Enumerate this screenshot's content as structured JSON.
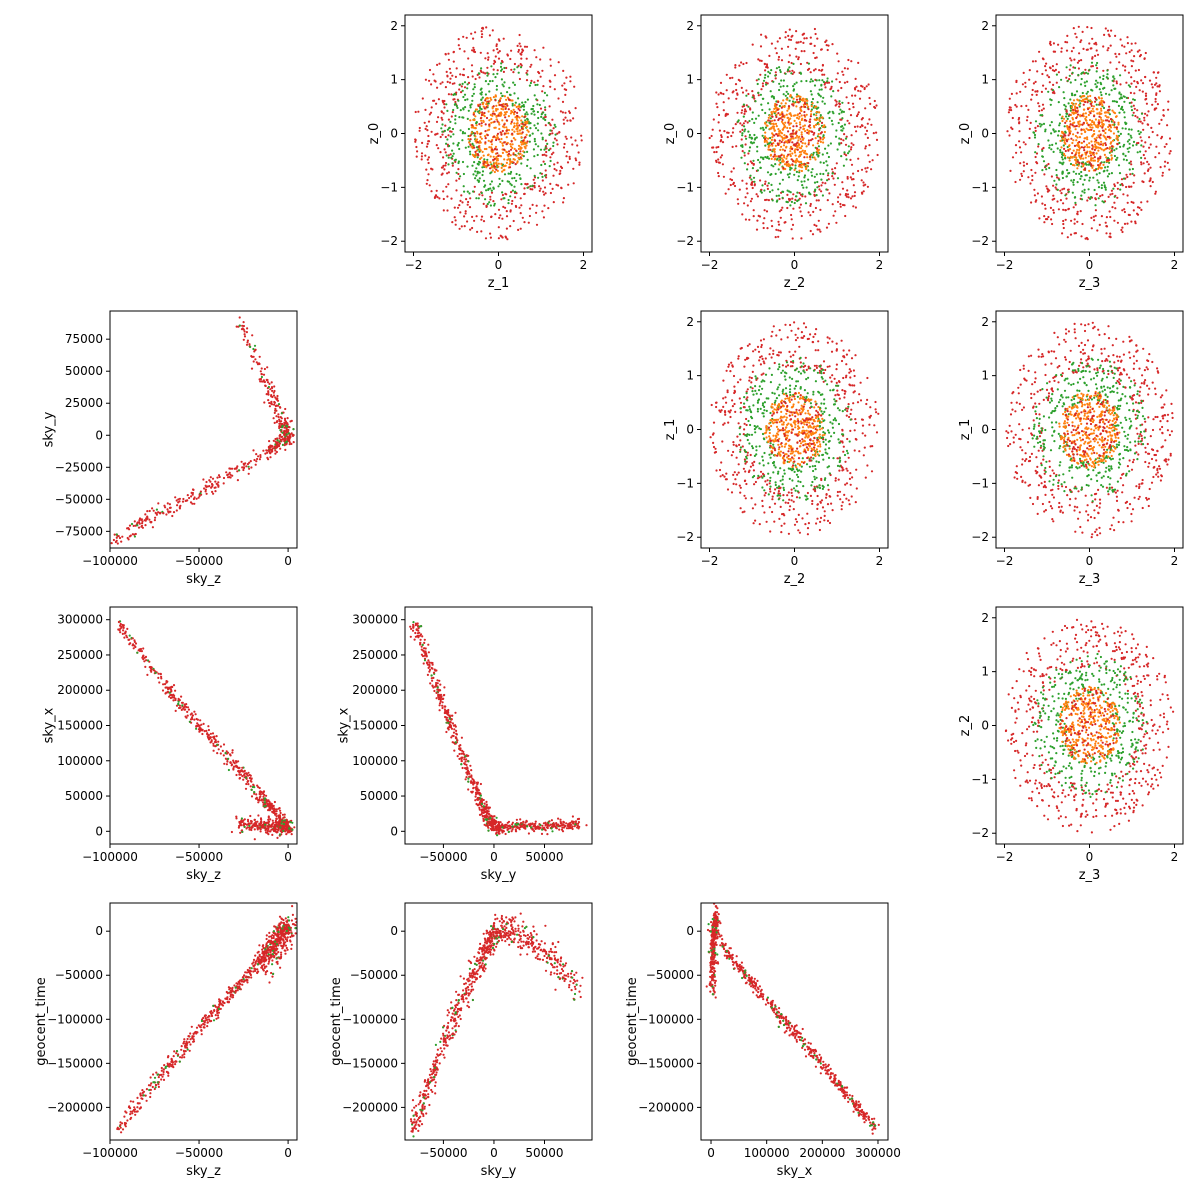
{
  "colors": {
    "red": "#d62728",
    "green": "#2ca02c",
    "orange": "#ff7f0e"
  },
  "chart_data": [
    {
      "type": "scatter",
      "xlabel": "z_1",
      "ylabel": "z_0",
      "xlim": [
        -2.2,
        2.2
      ],
      "ylim": [
        -2.2,
        2.2
      ],
      "xticks": [
        {
          "v": -2,
          "label": "−2"
        },
        {
          "v": 0,
          "label": "0"
        },
        {
          "v": 2,
          "label": "2"
        }
      ],
      "yticks": [
        {
          "v": -2,
          "label": "−2"
        },
        {
          "v": -1,
          "label": "−1"
        },
        {
          "v": 0,
          "label": "0"
        },
        {
          "v": 1,
          "label": "1"
        },
        {
          "v": 2,
          "label": "2"
        }
      ],
      "pattern": "disc",
      "seed": 11
    },
    {
      "type": "scatter",
      "xlabel": "z_2",
      "ylabel": "z_0",
      "xlim": [
        -2.2,
        2.2
      ],
      "ylim": [
        -2.2,
        2.2
      ],
      "xticks": [
        {
          "v": -2,
          "label": "−2"
        },
        {
          "v": 0,
          "label": "0"
        },
        {
          "v": 2,
          "label": "2"
        }
      ],
      "yticks": [
        {
          "v": -2,
          "label": "−2"
        },
        {
          "v": -1,
          "label": "−1"
        },
        {
          "v": 0,
          "label": "0"
        },
        {
          "v": 1,
          "label": "1"
        },
        {
          "v": 2,
          "label": "2"
        }
      ],
      "pattern": "disc",
      "seed": 23
    },
    {
      "type": "scatter",
      "xlabel": "z_3",
      "ylabel": "z_0",
      "xlim": [
        -2.2,
        2.2
      ],
      "ylim": [
        -2.2,
        2.2
      ],
      "xticks": [
        {
          "v": -2,
          "label": "−2"
        },
        {
          "v": 0,
          "label": "0"
        },
        {
          "v": 2,
          "label": "2"
        }
      ],
      "yticks": [
        {
          "v": -2,
          "label": "−2"
        },
        {
          "v": -1,
          "label": "−1"
        },
        {
          "v": 0,
          "label": "0"
        },
        {
          "v": 1,
          "label": "1"
        },
        {
          "v": 2,
          "label": "2"
        }
      ],
      "pattern": "disc",
      "seed": 37
    },
    {
      "type": "scatter",
      "xlabel": "sky_z",
      "ylabel": "sky_y",
      "xlim": [
        -100000,
        5000
      ],
      "ylim": [
        -88000,
        97000
      ],
      "xticks": [
        {
          "v": -100000,
          "label": "−100000"
        },
        {
          "v": -50000,
          "label": "−50000"
        },
        {
          "v": 0,
          "label": "0"
        }
      ],
      "yticks": [
        {
          "v": -75000,
          "label": "−75000"
        },
        {
          "v": -50000,
          "label": "−50000"
        },
        {
          "v": -25000,
          "label": "−25000"
        },
        {
          "v": 0,
          "label": "0"
        },
        {
          "v": 25000,
          "label": "25000"
        },
        {
          "v": 50000,
          "label": "50000"
        },
        {
          "v": 75000,
          "label": "75000"
        }
      ],
      "curves": [
        {
          "points": [
            [
              -28000,
              90000
            ],
            [
              -15000,
              50000
            ],
            [
              -8000,
              25000
            ],
            [
              -3000,
              8000
            ],
            [
              0,
              2000
            ],
            [
              -2000,
              -5000
            ],
            [
              -10000,
              -12000
            ],
            [
              -30000,
              -28000
            ],
            [
              -55000,
              -48000
            ],
            [
              -75000,
              -63000
            ],
            [
              -97000,
              -82000
            ]
          ],
          "spread": [
            1800,
            2800
          ]
        }
      ],
      "seed": 41
    },
    {
      "type": "scatter",
      "xlabel": "z_2",
      "ylabel": "z_1",
      "xlim": [
        -2.2,
        2.2
      ],
      "ylim": [
        -2.2,
        2.2
      ],
      "xticks": [
        {
          "v": -2,
          "label": "−2"
        },
        {
          "v": 0,
          "label": "0"
        },
        {
          "v": 2,
          "label": "2"
        }
      ],
      "yticks": [
        {
          "v": -2,
          "label": "−2"
        },
        {
          "v": -1,
          "label": "−1"
        },
        {
          "v": 0,
          "label": "0"
        },
        {
          "v": 1,
          "label": "1"
        },
        {
          "v": 2,
          "label": "2"
        }
      ],
      "pattern": "disc",
      "seed": 53
    },
    {
      "type": "scatter",
      "xlabel": "z_3",
      "ylabel": "z_1",
      "xlim": [
        -2.2,
        2.2
      ],
      "ylim": [
        -2.2,
        2.2
      ],
      "xticks": [
        {
          "v": -2,
          "label": "−2"
        },
        {
          "v": 0,
          "label": "0"
        },
        {
          "v": 2,
          "label": "2"
        }
      ],
      "yticks": [
        {
          "v": -2,
          "label": "−2"
        },
        {
          "v": -1,
          "label": "−1"
        },
        {
          "v": 0,
          "label": "0"
        },
        {
          "v": 1,
          "label": "1"
        },
        {
          "v": 2,
          "label": "2"
        }
      ],
      "pattern": "disc",
      "seed": 67
    },
    {
      "type": "scatter",
      "xlabel": "sky_z",
      "ylabel": "sky_x",
      "xlim": [
        -100000,
        5000
      ],
      "ylim": [
        -18000,
        318000
      ],
      "xticks": [
        {
          "v": -100000,
          "label": "−100000"
        },
        {
          "v": -50000,
          "label": "−50000"
        },
        {
          "v": 0,
          "label": "0"
        }
      ],
      "yticks": [
        {
          "v": 0,
          "label": "0"
        },
        {
          "v": 50000,
          "label": "50000"
        },
        {
          "v": 100000,
          "label": "100000"
        },
        {
          "v": 150000,
          "label": "150000"
        },
        {
          "v": 200000,
          "label": "200000"
        },
        {
          "v": 250000,
          "label": "250000"
        },
        {
          "v": 300000,
          "label": "300000"
        }
      ],
      "curves": [
        {
          "points": [
            [
              -96000,
              297000
            ],
            [
              -70000,
              210000
            ],
            [
              -50000,
              150000
            ],
            [
              -30000,
              95000
            ],
            [
              -15000,
              50000
            ],
            [
              -5000,
              20000
            ],
            [
              0,
              5000
            ]
          ],
          "spread": [
            1500,
            4000
          ]
        },
        {
          "points": [
            [
              -28000,
              10000
            ],
            [
              -15000,
              8000
            ],
            [
              -5000,
              6000
            ],
            [
              0,
              3000
            ]
          ],
          "spread": [
            2000,
            5000
          ]
        }
      ],
      "seed": 79
    },
    {
      "type": "scatter",
      "xlabel": "sky_y",
      "ylabel": "sky_x",
      "xlim": [
        -88000,
        97000
      ],
      "ylim": [
        -18000,
        318000
      ],
      "xticks": [
        {
          "v": -50000,
          "label": "−50000"
        },
        {
          "v": 0,
          "label": "0"
        },
        {
          "v": 50000,
          "label": "50000"
        }
      ],
      "yticks": [
        {
          "v": 0,
          "label": "0"
        },
        {
          "v": 50000,
          "label": "50000"
        },
        {
          "v": 100000,
          "label": "100000"
        },
        {
          "v": 150000,
          "label": "150000"
        },
        {
          "v": 200000,
          "label": "200000"
        },
        {
          "v": 250000,
          "label": "250000"
        },
        {
          "v": 300000,
          "label": "300000"
        }
      ],
      "curves": [
        {
          "points": [
            [
              -80000,
              297000
            ],
            [
              -60000,
              220000
            ],
            [
              -45000,
              160000
            ],
            [
              -30000,
              100000
            ],
            [
              -15000,
              50000
            ],
            [
              -5000,
              15000
            ],
            [
              5000,
              3000
            ]
          ],
          "spread": [
            2500,
            5000
          ]
        },
        {
          "points": [
            [
              0,
              5000
            ],
            [
              30000,
              7000
            ],
            [
              60000,
              8000
            ],
            [
              88000,
              9000
            ]
          ],
          "spread": [
            2500,
            4000
          ]
        }
      ],
      "seed": 97
    },
    {
      "type": "scatter",
      "xlabel": "z_3",
      "ylabel": "z_2",
      "xlim": [
        -2.2,
        2.2
      ],
      "ylim": [
        -2.2,
        2.2
      ],
      "xticks": [
        {
          "v": -2,
          "label": "−2"
        },
        {
          "v": 0,
          "label": "0"
        },
        {
          "v": 2,
          "label": "2"
        }
      ],
      "yticks": [
        {
          "v": -2,
          "label": "−2"
        },
        {
          "v": -1,
          "label": "−1"
        },
        {
          "v": 0,
          "label": "0"
        },
        {
          "v": 1,
          "label": "1"
        },
        {
          "v": 2,
          "label": "2"
        }
      ],
      "pattern": "disc",
      "seed": 113
    },
    {
      "type": "scatter",
      "xlabel": "sky_z",
      "ylabel": "geocent_time",
      "xlim": [
        -100000,
        5000
      ],
      "ylim": [
        -237000,
        32000
      ],
      "xticks": [
        {
          "v": -100000,
          "label": "−100000"
        },
        {
          "v": -50000,
          "label": "−50000"
        },
        {
          "v": 0,
          "label": "0"
        }
      ],
      "yticks": [
        {
          "v": -200000,
          "label": "−200000"
        },
        {
          "v": -150000,
          "label": "−150000"
        },
        {
          "v": -100000,
          "label": "−100000"
        },
        {
          "v": -50000,
          "label": "−50000"
        },
        {
          "v": 0,
          "label": "0"
        }
      ],
      "curves": [
        {
          "points": [
            [
              -96000,
              -225000
            ],
            [
              -70000,
              -160000
            ],
            [
              -45000,
              -100000
            ],
            [
              -25000,
              -55000
            ],
            [
              -10000,
              -20000
            ],
            [
              0,
              5000
            ]
          ],
          "spread": [
            1500,
            3500
          ]
        },
        {
          "points": [
            [
              -15000,
              -40000
            ],
            [
              -8000,
              -20000
            ],
            [
              -3000,
              -5000
            ],
            [
              0,
              10000
            ]
          ],
          "spread": [
            3000,
            10000
          ]
        }
      ],
      "seed": 131
    },
    {
      "type": "scatter",
      "xlabel": "sky_y",
      "ylabel": "geocent_time",
      "xlim": [
        -88000,
        97000
      ],
      "ylim": [
        -237000,
        32000
      ],
      "xticks": [
        {
          "v": -50000,
          "label": "−50000"
        },
        {
          "v": 0,
          "label": "0"
        },
        {
          "v": 50000,
          "label": "50000"
        }
      ],
      "yticks": [
        {
          "v": -200000,
          "label": "−200000"
        },
        {
          "v": -150000,
          "label": "−150000"
        },
        {
          "v": -100000,
          "label": "−100000"
        },
        {
          "v": -50000,
          "label": "−50000"
        },
        {
          "v": 0,
          "label": "0"
        }
      ],
      "curves": [
        {
          "points": [
            [
              -80000,
              -225000
            ],
            [
              -60000,
              -160000
            ],
            [
              -40000,
              -100000
            ],
            [
              -20000,
              -50000
            ],
            [
              -5000,
              -15000
            ],
            [
              5000,
              5000
            ]
          ],
          "spread": [
            3000,
            6000
          ]
        },
        {
          "points": [
            [
              5000,
              5000
            ],
            [
              20000,
              0
            ],
            [
              40000,
              -15000
            ],
            [
              60000,
              -35000
            ],
            [
              85000,
              -65000
            ]
          ],
          "spread": [
            3500,
            9000
          ]
        }
      ],
      "seed": 151
    },
    {
      "type": "scatter",
      "xlabel": "sky_x",
      "ylabel": "geocent_time",
      "xlim": [
        -18000,
        318000
      ],
      "ylim": [
        -237000,
        32000
      ],
      "xticks": [
        {
          "v": 0,
          "label": "0"
        },
        {
          "v": 100000,
          "label": "100000"
        },
        {
          "v": 200000,
          "label": "200000"
        },
        {
          "v": 300000,
          "label": "300000"
        }
      ],
      "yticks": [
        {
          "v": -200000,
          "label": "−200000"
        },
        {
          "v": -150000,
          "label": "−150000"
        },
        {
          "v": -100000,
          "label": "−100000"
        },
        {
          "v": -50000,
          "label": "−50000"
        },
        {
          "v": 0,
          "label": "0"
        }
      ],
      "curves": [
        {
          "points": [
            [
              0,
              0
            ],
            [
              50000,
              -40000
            ],
            [
              100000,
              -80000
            ],
            [
              150000,
              -115000
            ],
            [
              200000,
              -150000
            ],
            [
              250000,
              -190000
            ],
            [
              297000,
              -225000
            ]
          ],
          "spread": [
            2500,
            4000
          ]
        },
        {
          "points": [
            [
              3000,
              -65000
            ],
            [
              3000,
              -30000
            ],
            [
              6000,
              0
            ],
            [
              10000,
              18000
            ]
          ],
          "spread": [
            3000,
            8000
          ]
        }
      ],
      "seed": 173
    }
  ]
}
